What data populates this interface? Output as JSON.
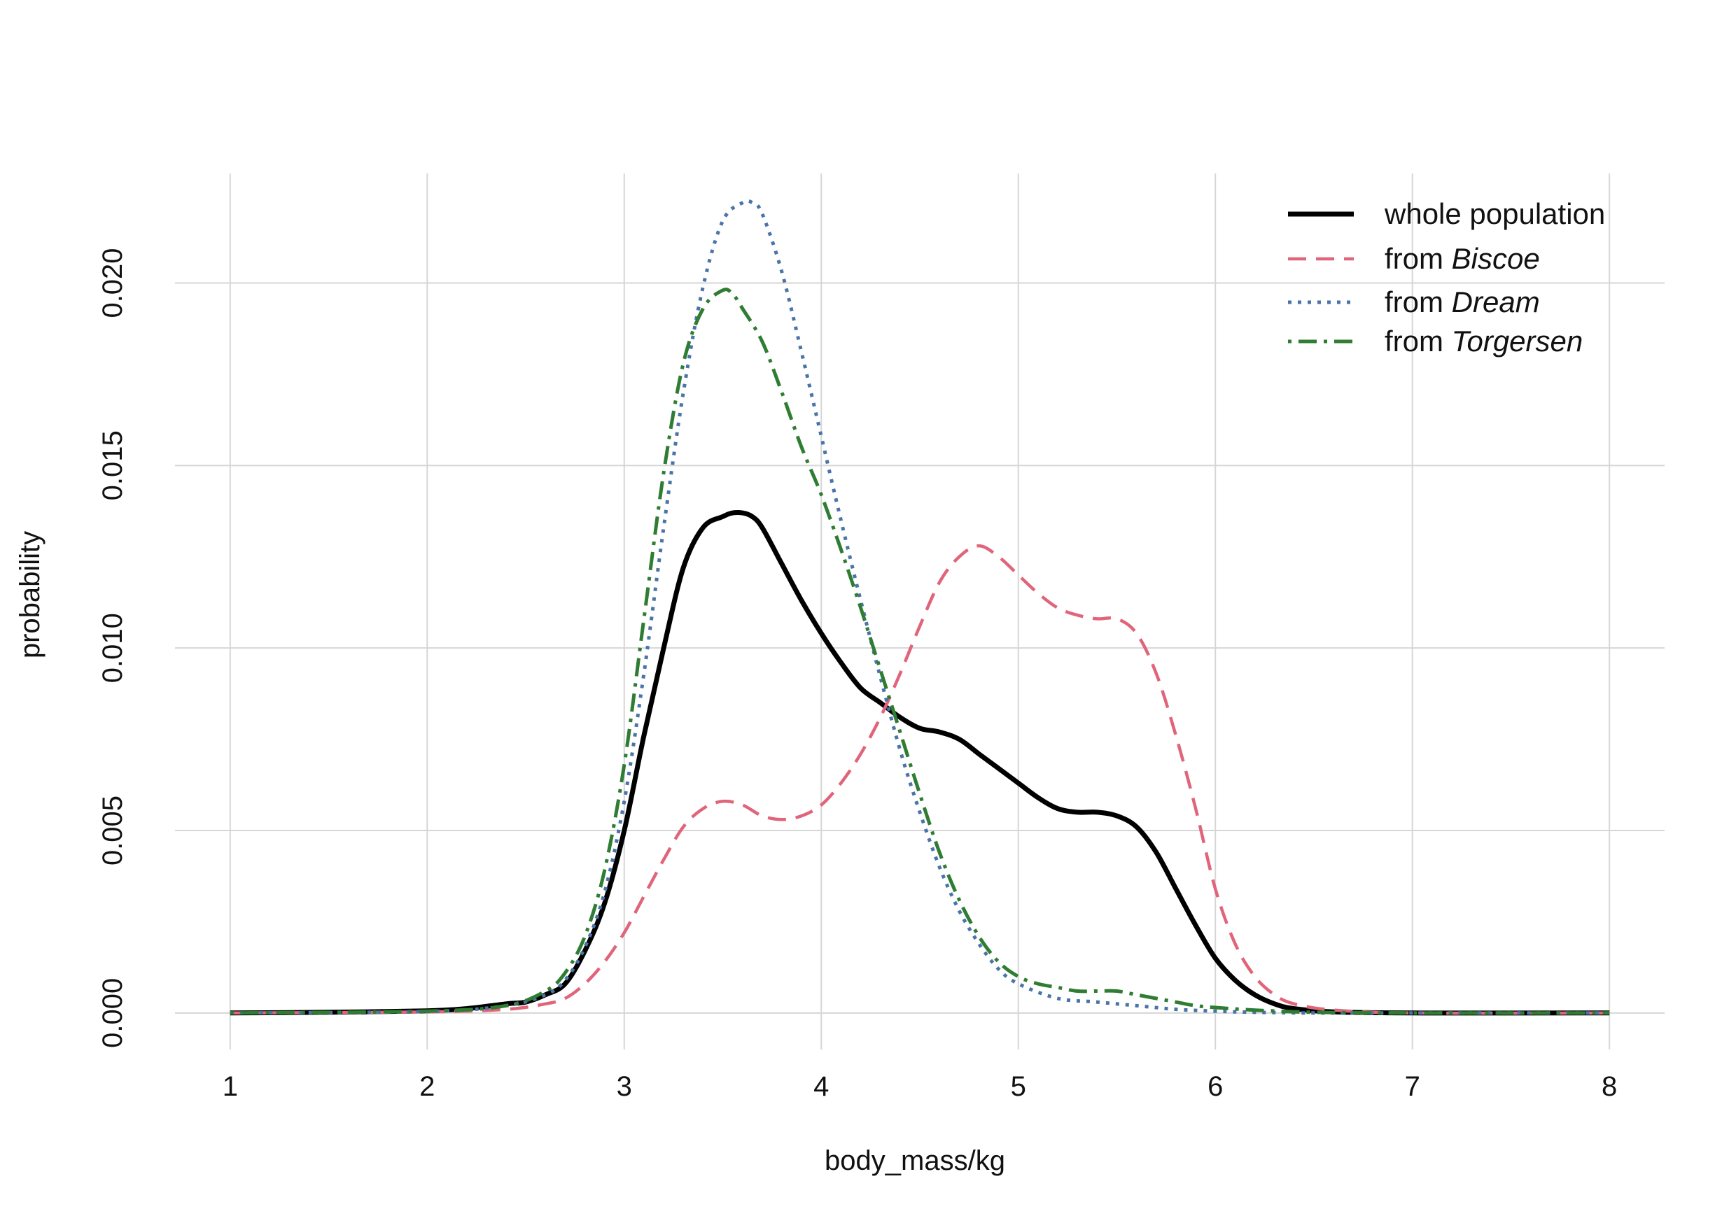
{
  "chart_data": {
    "type": "line",
    "title": "",
    "xlabel": "body_mass/kg",
    "ylabel": "probability",
    "xlim": [
      0.72,
      8.28
    ],
    "ylim": [
      -0.001,
      0.023
    ],
    "x_ticks": [
      1,
      2,
      3,
      4,
      5,
      6,
      7,
      8
    ],
    "x_tick_labels": [
      "1",
      "2",
      "3",
      "4",
      "5",
      "6",
      "7",
      "8"
    ],
    "y_ticks": [
      0,
      0.005,
      0.01,
      0.015,
      0.02
    ],
    "y_tick_labels": [
      "0.000",
      "0.005",
      "0.010",
      "0.015",
      "0.020"
    ],
    "grid": true,
    "legend_position": "top-right",
    "legend": [
      {
        "prefix": "whole population",
        "emph": ""
      },
      {
        "prefix": "from ",
        "emph": "Biscoe"
      },
      {
        "prefix": "from ",
        "emph": "Dream"
      },
      {
        "prefix": "from ",
        "emph": "Torgersen"
      }
    ],
    "series": [
      {
        "color": "#000000",
        "line_style": "solid",
        "x": [
          1.0,
          1.5,
          2.0,
          2.2,
          2.4,
          2.5,
          2.6,
          2.7,
          2.8,
          2.9,
          3.0,
          3.1,
          3.2,
          3.3,
          3.4,
          3.5,
          3.55,
          3.6,
          3.65,
          3.7,
          3.8,
          3.9,
          4.0,
          4.1,
          4.2,
          4.3,
          4.4,
          4.5,
          4.6,
          4.7,
          4.8,
          4.9,
          5.0,
          5.1,
          5.2,
          5.3,
          5.4,
          5.5,
          5.6,
          5.7,
          5.8,
          5.9,
          6.0,
          6.1,
          6.2,
          6.3,
          6.4,
          6.6,
          7.0,
          8.0
        ],
        "y": [
          0.0,
          2e-05,
          6e-05,
          0.00012,
          0.00025,
          0.0003,
          0.0005,
          0.0008,
          0.0017,
          0.003,
          0.005,
          0.0076,
          0.01,
          0.0122,
          0.0133,
          0.0136,
          0.0137,
          0.0137,
          0.0136,
          0.0133,
          0.0123,
          0.0113,
          0.0104,
          0.0096,
          0.0089,
          0.0085,
          0.0081,
          0.0078,
          0.0077,
          0.0075,
          0.0071,
          0.0067,
          0.0063,
          0.0059,
          0.0056,
          0.0055,
          0.0055,
          0.0054,
          0.0051,
          0.0044,
          0.0034,
          0.0024,
          0.0015,
          0.0009,
          0.0005,
          0.00025,
          0.00012,
          3e-05,
          0.0,
          0.0
        ]
      },
      {
        "color": "#e0657a",
        "line_style": "dashed",
        "x": [
          1.0,
          2.0,
          2.4,
          2.6,
          2.7,
          2.8,
          2.9,
          3.0,
          3.1,
          3.2,
          3.3,
          3.4,
          3.5,
          3.6,
          3.7,
          3.8,
          3.9,
          4.0,
          4.1,
          4.2,
          4.3,
          4.4,
          4.5,
          4.6,
          4.7,
          4.8,
          4.9,
          5.0,
          5.1,
          5.2,
          5.3,
          5.4,
          5.5,
          5.6,
          5.7,
          5.8,
          5.9,
          6.0,
          6.1,
          6.2,
          6.3,
          6.4,
          6.6,
          7.0,
          8.0
        ],
        "y": [
          0.0,
          3e-05,
          0.0001,
          0.00025,
          0.0004,
          0.0008,
          0.0014,
          0.0022,
          0.0032,
          0.0042,
          0.0051,
          0.0056,
          0.0058,
          0.0057,
          0.0054,
          0.0053,
          0.0054,
          0.0057,
          0.0063,
          0.0071,
          0.0081,
          0.0093,
          0.0106,
          0.0118,
          0.0125,
          0.0128,
          0.0125,
          0.012,
          0.0115,
          0.0111,
          0.0109,
          0.0108,
          0.0108,
          0.0104,
          0.0093,
          0.0076,
          0.0056,
          0.0034,
          0.0019,
          0.001,
          0.0005,
          0.00025,
          8e-05,
          0.0,
          0.0
        ]
      },
      {
        "color": "#4a74a8",
        "line_style": "dotted",
        "x": [
          1.0,
          2.0,
          2.4,
          2.6,
          2.7,
          2.8,
          2.9,
          3.0,
          3.1,
          3.2,
          3.3,
          3.4,
          3.5,
          3.6,
          3.65,
          3.7,
          3.8,
          3.9,
          4.0,
          4.1,
          4.2,
          4.3,
          4.4,
          4.5,
          4.6,
          4.7,
          4.8,
          4.9,
          5.0,
          5.2,
          5.4,
          5.6,
          5.8,
          6.0,
          6.2,
          6.5,
          7.0,
          8.0
        ],
        "y": [
          0.0,
          4e-05,
          0.0002,
          0.0005,
          0.0009,
          0.0018,
          0.0033,
          0.0058,
          0.0093,
          0.0133,
          0.017,
          0.0199,
          0.0217,
          0.0222,
          0.0222,
          0.0219,
          0.0203,
          0.0181,
          0.0158,
          0.0135,
          0.0113,
          0.0092,
          0.0072,
          0.0055,
          0.004,
          0.0028,
          0.0019,
          0.0012,
          0.0008,
          0.0004,
          0.0003,
          0.0002,
          0.0001,
          5e-05,
          2e-05,
          0.0,
          0.0,
          0.0
        ]
      },
      {
        "color": "#2e7d32",
        "line_style": "dotdash",
        "x": [
          1.0,
          2.0,
          2.4,
          2.6,
          2.7,
          2.8,
          2.9,
          3.0,
          3.1,
          3.2,
          3.3,
          3.4,
          3.5,
          3.55,
          3.6,
          3.7,
          3.8,
          3.9,
          4.0,
          4.1,
          4.2,
          4.3,
          4.4,
          4.5,
          4.6,
          4.7,
          4.8,
          4.9,
          5.0,
          5.1,
          5.2,
          5.3,
          5.4,
          5.5,
          5.6,
          5.7,
          5.8,
          5.9,
          6.0,
          6.2,
          6.5,
          7.0,
          8.0
        ],
        "y": [
          0.0,
          5e-05,
          0.0002,
          0.0006,
          0.0011,
          0.0021,
          0.0039,
          0.0068,
          0.0108,
          0.0148,
          0.0178,
          0.0193,
          0.0198,
          0.0197,
          0.0193,
          0.0184,
          0.017,
          0.0155,
          0.0142,
          0.0127,
          0.0111,
          0.0094,
          0.0077,
          0.006,
          0.0044,
          0.0031,
          0.0021,
          0.0014,
          0.001,
          0.0008,
          0.0007,
          0.0006,
          0.0006,
          0.0006,
          0.0005,
          0.0004,
          0.0003,
          0.0002,
          0.00015,
          8e-05,
          2e-05,
          0.0,
          0.0
        ]
      }
    ]
  }
}
